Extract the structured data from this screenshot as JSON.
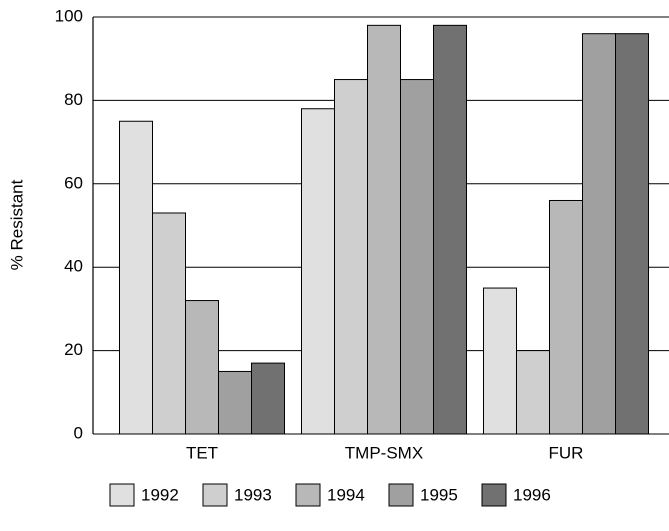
{
  "chart_data": {
    "type": "bar",
    "y_label": "% Resistant",
    "categories": [
      "TET",
      "TMP-SMX",
      "FUR"
    ],
    "series": [
      {
        "name": "1992",
        "color": "#e0e0e0",
        "values": [
          75,
          78,
          35
        ]
      },
      {
        "name": "1993",
        "color": "#cfcfcf",
        "values": [
          53,
          85,
          20
        ]
      },
      {
        "name": "1994",
        "color": "#b8b8b8",
        "values": [
          32,
          98,
          56
        ]
      },
      {
        "name": "1995",
        "color": "#a0a0a0",
        "values": [
          15,
          85,
          96
        ]
      },
      {
        "name": "1996",
        "color": "#717171",
        "values": [
          17,
          98,
          96
        ]
      }
    ],
    "ylim": [
      0,
      100
    ],
    "yticks": [
      0,
      20,
      40,
      60,
      80,
      100
    ],
    "grid": true
  }
}
